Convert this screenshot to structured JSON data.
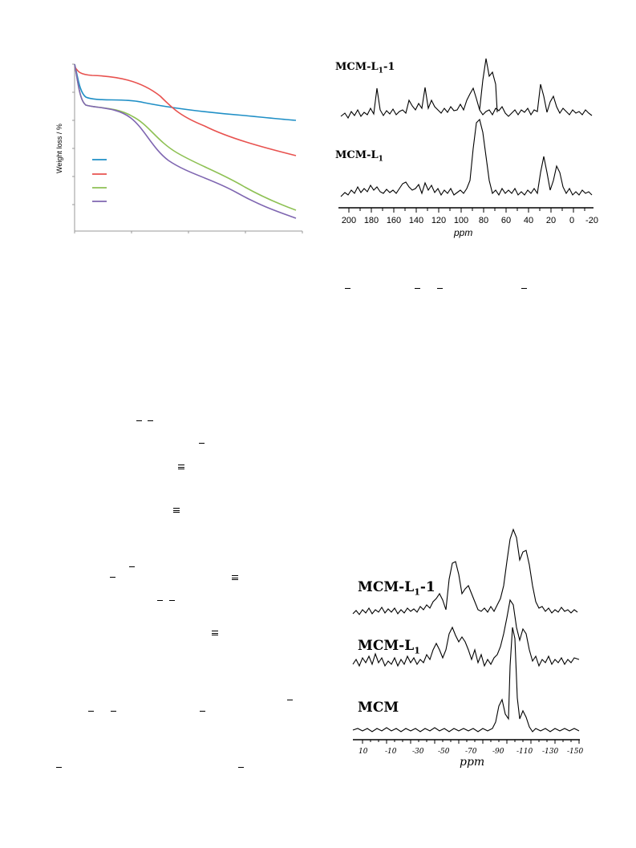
{
  "tga": {
    "ylabel": "Weight loss / %",
    "series": [
      {
        "name": "",
        "color": "#1f8fc6"
      },
      {
        "name": "",
        "color": "#e8524f"
      },
      {
        "name": "",
        "color": "#8ec154"
      },
      {
        "name": "",
        "color": "#7f66b1"
      }
    ]
  },
  "c13": {
    "labels": {
      "top": "MCM-L",
      "top_sub": "1",
      "top_suffix": "-1",
      "bottom": "MCM-L",
      "bottom_sub": "1"
    },
    "xlabel": "ppm",
    "ticks": [
      "200",
      "180",
      "160",
      "140",
      "120",
      "100",
      "80",
      "60",
      "40",
      "20",
      "0",
      "-20"
    ]
  },
  "si29": {
    "labels": {
      "top": "MCM-L",
      "top_sub": "1",
      "top_suffix": "-1",
      "mid": "MCM-L",
      "mid_sub": "1",
      "bottom": "MCM"
    },
    "xlabel": "ppm",
    "ticks": [
      "10",
      "-10",
      "-30",
      "-50",
      "-70",
      "-90",
      "-110",
      "-130",
      "-150"
    ]
  }
}
